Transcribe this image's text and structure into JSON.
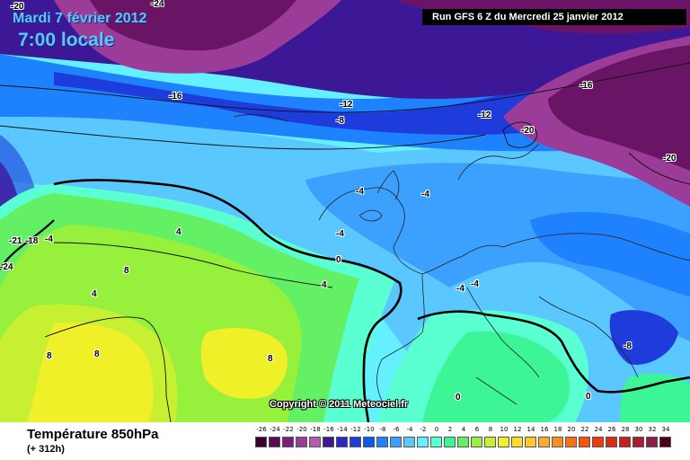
{
  "header": {
    "date": "Mardi 7 février 2012",
    "time": "7:00 locale",
    "run": "Run GFS 6 Z du Mercredi 25 janvier 2012"
  },
  "copyright": "Copyright © 2011 Meteociel.fr",
  "footer": {
    "variable": "Température 850hPa",
    "forecast_hour": "(+ 312h)"
  },
  "legend": {
    "labels": [
      "-26",
      "-24",
      "-22",
      "-20",
      "-18",
      "-16",
      "-14",
      "-12",
      "-10",
      "-8",
      "-6",
      "-4",
      "-2",
      "0",
      "2",
      "4",
      "6",
      "8",
      "10",
      "12",
      "14",
      "16",
      "18",
      "20",
      "22",
      "24",
      "26",
      "28",
      "30",
      "32",
      "34"
    ],
    "colors": [
      "#3c0030",
      "#5a0a50",
      "#7a1f78",
      "#9a3c98",
      "#b45ab4",
      "#3c1896",
      "#2828c8",
      "#1e3cdc",
      "#0a5af0",
      "#1e82ff",
      "#3ca0ff",
      "#5ac8ff",
      "#64f0ff",
      "#5affd2",
      "#3cf596",
      "#64f064",
      "#96f03c",
      "#c8f032",
      "#f0f028",
      "#ffdc28",
      "#ffc828",
      "#ffaa28",
      "#ff8c1e",
      "#ff6e14",
      "#ff500a",
      "#f03c0a",
      "#dc2814",
      "#c81e1e",
      "#aa1e32",
      "#8c1e46",
      "#500014"
    ]
  },
  "isotherm_labels": [
    "-20",
    "-24",
    "-16",
    "-12",
    "-8",
    "-12",
    "-16",
    "-20",
    "-20",
    "-4",
    "-4",
    "-4",
    "-4",
    "4",
    "0",
    "4",
    "8",
    "4",
    "8",
    "8",
    "8",
    "-4",
    "0",
    "-8",
    "0",
    "-24",
    "-21",
    "-18",
    "-4"
  ],
  "colors": {
    "deep_purple": "#6a1466",
    "purple": "#9a3c98",
    "indigo": "#3c1896",
    "blue": "#1e3cdc",
    "mid_blue": "#1e82ff",
    "light_blue": "#5ac8ff",
    "cyan": "#64f0ff",
    "aqua": "#5affd2",
    "green": "#64f064",
    "yellow_green": "#c8f032",
    "yellow": "#f0f028"
  }
}
